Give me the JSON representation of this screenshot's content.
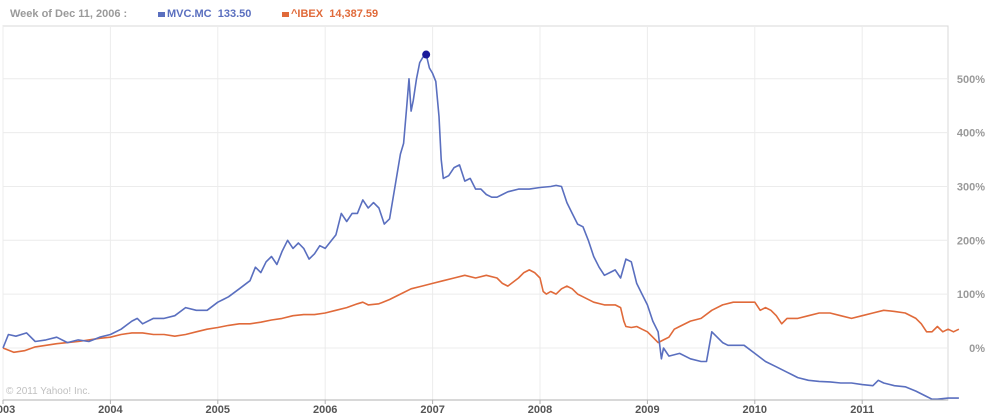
{
  "header": {
    "week_label": "Week of Dec 11, 2006 :",
    "series": [
      {
        "name": "MVC.MC",
        "value": "133.50",
        "color": "#5a6fbf"
      },
      {
        "name": "^IBEX",
        "value": "14,387.59",
        "color": "#e06a3a"
      }
    ]
  },
  "copyright": "© 2011 Yahoo! Inc.",
  "chart_data": {
    "type": "line",
    "title": "",
    "xlabel": "",
    "ylabel": "",
    "x_tick_labels": [
      "2003",
      "2004",
      "2005",
      "2006",
      "2007",
      "2008",
      "2009",
      "2010",
      "2011"
    ],
    "y_tick_labels": [
      "0%",
      "100%",
      "200%",
      "300%",
      "400%",
      "500%"
    ],
    "y_ticks": [
      0,
      100,
      200,
      300,
      400,
      500
    ],
    "xlim": [
      2003.0,
      2011.9
    ],
    "ylim": [
      -100,
      600
    ],
    "grid": true,
    "highlight": {
      "series": "MVC.MC",
      "x": 2006.94,
      "y": 545
    },
    "series": [
      {
        "name": "MVC.MC",
        "color": "#5a6fbf",
        "points": [
          [
            2003.0,
            0
          ],
          [
            2003.05,
            25
          ],
          [
            2003.12,
            22
          ],
          [
            2003.22,
            28
          ],
          [
            2003.3,
            12
          ],
          [
            2003.4,
            15
          ],
          [
            2003.5,
            20
          ],
          [
            2003.6,
            10
          ],
          [
            2003.7,
            15
          ],
          [
            2003.8,
            12
          ],
          [
            2003.9,
            20
          ],
          [
            2004.0,
            25
          ],
          [
            2004.1,
            35
          ],
          [
            2004.2,
            50
          ],
          [
            2004.25,
            55
          ],
          [
            2004.3,
            45
          ],
          [
            2004.4,
            55
          ],
          [
            2004.5,
            55
          ],
          [
            2004.6,
            60
          ],
          [
            2004.7,
            75
          ],
          [
            2004.8,
            70
          ],
          [
            2004.9,
            70
          ],
          [
            2005.0,
            85
          ],
          [
            2005.05,
            90
          ],
          [
            2005.1,
            95
          ],
          [
            2005.2,
            110
          ],
          [
            2005.3,
            125
          ],
          [
            2005.35,
            150
          ],
          [
            2005.4,
            140
          ],
          [
            2005.45,
            160
          ],
          [
            2005.5,
            170
          ],
          [
            2005.55,
            155
          ],
          [
            2005.6,
            180
          ],
          [
            2005.65,
            200
          ],
          [
            2005.7,
            185
          ],
          [
            2005.75,
            195
          ],
          [
            2005.8,
            185
          ],
          [
            2005.85,
            165
          ],
          [
            2005.9,
            175
          ],
          [
            2005.95,
            190
          ],
          [
            2006.0,
            185
          ],
          [
            2006.1,
            210
          ],
          [
            2006.15,
            250
          ],
          [
            2006.2,
            235
          ],
          [
            2006.25,
            250
          ],
          [
            2006.3,
            250
          ],
          [
            2006.35,
            275
          ],
          [
            2006.4,
            260
          ],
          [
            2006.45,
            270
          ],
          [
            2006.5,
            260
          ],
          [
            2006.55,
            230
          ],
          [
            2006.6,
            240
          ],
          [
            2006.65,
            300
          ],
          [
            2006.7,
            360
          ],
          [
            2006.73,
            380
          ],
          [
            2006.76,
            450
          ],
          [
            2006.78,
            500
          ],
          [
            2006.8,
            440
          ],
          [
            2006.82,
            460
          ],
          [
            2006.85,
            500
          ],
          [
            2006.88,
            530
          ],
          [
            2006.91,
            540
          ],
          [
            2006.94,
            545
          ],
          [
            2006.97,
            520
          ],
          [
            2007.0,
            510
          ],
          [
            2007.03,
            495
          ],
          [
            2007.06,
            430
          ],
          [
            2007.08,
            350
          ],
          [
            2007.1,
            315
          ],
          [
            2007.15,
            320
          ],
          [
            2007.2,
            335
          ],
          [
            2007.25,
            340
          ],
          [
            2007.3,
            310
          ],
          [
            2007.35,
            315
          ],
          [
            2007.4,
            295
          ],
          [
            2007.45,
            295
          ],
          [
            2007.5,
            285
          ],
          [
            2007.55,
            280
          ],
          [
            2007.6,
            280
          ],
          [
            2007.65,
            285
          ],
          [
            2007.7,
            290
          ],
          [
            2007.8,
            295
          ],
          [
            2007.9,
            295
          ],
          [
            2008.0,
            298
          ],
          [
            2008.1,
            300
          ],
          [
            2008.15,
            302
          ],
          [
            2008.2,
            300
          ],
          [
            2008.25,
            270
          ],
          [
            2008.3,
            250
          ],
          [
            2008.35,
            230
          ],
          [
            2008.4,
            225
          ],
          [
            2008.45,
            200
          ],
          [
            2008.5,
            170
          ],
          [
            2008.55,
            150
          ],
          [
            2008.6,
            135
          ],
          [
            2008.65,
            140
          ],
          [
            2008.7,
            145
          ],
          [
            2008.75,
            130
          ],
          [
            2008.8,
            165
          ],
          [
            2008.85,
            160
          ],
          [
            2008.9,
            120
          ],
          [
            2008.95,
            100
          ],
          [
            2009.0,
            80
          ],
          [
            2009.05,
            50
          ],
          [
            2009.1,
            30
          ],
          [
            2009.13,
            -20
          ],
          [
            2009.15,
            0
          ],
          [
            2009.2,
            -15
          ],
          [
            2009.3,
            -10
          ],
          [
            2009.4,
            -20
          ],
          [
            2009.5,
            -25
          ],
          [
            2009.55,
            -25
          ],
          [
            2009.6,
            30
          ],
          [
            2009.65,
            20
          ],
          [
            2009.7,
            10
          ],
          [
            2009.75,
            5
          ],
          [
            2009.8,
            5
          ],
          [
            2009.9,
            5
          ],
          [
            2010.0,
            -10
          ],
          [
            2010.1,
            -25
          ],
          [
            2010.2,
            -35
          ],
          [
            2010.3,
            -45
          ],
          [
            2010.35,
            -50
          ],
          [
            2010.4,
            -55
          ],
          [
            2010.5,
            -60
          ],
          [
            2010.6,
            -62
          ],
          [
            2010.7,
            -63
          ],
          [
            2010.8,
            -65
          ],
          [
            2010.9,
            -65
          ],
          [
            2011.0,
            -68
          ],
          [
            2011.1,
            -70
          ],
          [
            2011.15,
            -60
          ],
          [
            2011.2,
            -65
          ],
          [
            2011.3,
            -70
          ],
          [
            2011.4,
            -72
          ],
          [
            2011.5,
            -80
          ],
          [
            2011.6,
            -90
          ],
          [
            2011.65,
            -95
          ],
          [
            2011.7,
            -95
          ],
          [
            2011.8,
            -93
          ],
          [
            2011.9,
            -93
          ]
        ]
      },
      {
        "name": "^IBEX",
        "color": "#e06a3a",
        "points": [
          [
            2003.0,
            0
          ],
          [
            2003.1,
            -8
          ],
          [
            2003.2,
            -5
          ],
          [
            2003.3,
            2
          ],
          [
            2003.4,
            5
          ],
          [
            2003.5,
            8
          ],
          [
            2003.6,
            10
          ],
          [
            2003.7,
            12
          ],
          [
            2003.8,
            15
          ],
          [
            2003.9,
            18
          ],
          [
            2004.0,
            20
          ],
          [
            2004.1,
            25
          ],
          [
            2004.2,
            28
          ],
          [
            2004.3,
            28
          ],
          [
            2004.4,
            25
          ],
          [
            2004.5,
            25
          ],
          [
            2004.6,
            22
          ],
          [
            2004.7,
            25
          ],
          [
            2004.8,
            30
          ],
          [
            2004.9,
            35
          ],
          [
            2005.0,
            38
          ],
          [
            2005.1,
            42
          ],
          [
            2005.2,
            45
          ],
          [
            2005.3,
            45
          ],
          [
            2005.4,
            48
          ],
          [
            2005.5,
            52
          ],
          [
            2005.6,
            55
          ],
          [
            2005.7,
            60
          ],
          [
            2005.8,
            62
          ],
          [
            2005.9,
            62
          ],
          [
            2006.0,
            65
          ],
          [
            2006.1,
            70
          ],
          [
            2006.2,
            75
          ],
          [
            2006.3,
            82
          ],
          [
            2006.35,
            85
          ],
          [
            2006.4,
            80
          ],
          [
            2006.5,
            82
          ],
          [
            2006.6,
            90
          ],
          [
            2006.7,
            100
          ],
          [
            2006.8,
            110
          ],
          [
            2006.9,
            115
          ],
          [
            2007.0,
            120
          ],
          [
            2007.1,
            125
          ],
          [
            2007.2,
            130
          ],
          [
            2007.3,
            135
          ],
          [
            2007.4,
            130
          ],
          [
            2007.5,
            135
          ],
          [
            2007.6,
            130
          ],
          [
            2007.65,
            120
          ],
          [
            2007.7,
            115
          ],
          [
            2007.8,
            130
          ],
          [
            2007.85,
            140
          ],
          [
            2007.9,
            145
          ],
          [
            2007.95,
            140
          ],
          [
            2008.0,
            130
          ],
          [
            2008.03,
            105
          ],
          [
            2008.06,
            100
          ],
          [
            2008.1,
            105
          ],
          [
            2008.15,
            100
          ],
          [
            2008.2,
            110
          ],
          [
            2008.25,
            115
          ],
          [
            2008.3,
            110
          ],
          [
            2008.35,
            100
          ],
          [
            2008.4,
            95
          ],
          [
            2008.5,
            85
          ],
          [
            2008.6,
            80
          ],
          [
            2008.7,
            80
          ],
          [
            2008.75,
            75
          ],
          [
            2008.78,
            50
          ],
          [
            2008.8,
            40
          ],
          [
            2008.85,
            38
          ],
          [
            2008.9,
            40
          ],
          [
            2008.95,
            35
          ],
          [
            2009.0,
            30
          ],
          [
            2009.05,
            20
          ],
          [
            2009.1,
            10
          ],
          [
            2009.15,
            15
          ],
          [
            2009.2,
            20
          ],
          [
            2009.25,
            35
          ],
          [
            2009.3,
            40
          ],
          [
            2009.4,
            50
          ],
          [
            2009.5,
            55
          ],
          [
            2009.6,
            70
          ],
          [
            2009.7,
            80
          ],
          [
            2009.8,
            85
          ],
          [
            2009.9,
            85
          ],
          [
            2010.0,
            85
          ],
          [
            2010.05,
            70
          ],
          [
            2010.1,
            75
          ],
          [
            2010.15,
            70
          ],
          [
            2010.2,
            60
          ],
          [
            2010.25,
            45
          ],
          [
            2010.3,
            55
          ],
          [
            2010.4,
            55
          ],
          [
            2010.5,
            60
          ],
          [
            2010.6,
            65
          ],
          [
            2010.7,
            65
          ],
          [
            2010.8,
            60
          ],
          [
            2010.9,
            55
          ],
          [
            2011.0,
            60
          ],
          [
            2011.1,
            65
          ],
          [
            2011.2,
            70
          ],
          [
            2011.3,
            68
          ],
          [
            2011.4,
            65
          ],
          [
            2011.5,
            55
          ],
          [
            2011.55,
            45
          ],
          [
            2011.6,
            30
          ],
          [
            2011.65,
            30
          ],
          [
            2011.7,
            40
          ],
          [
            2011.75,
            30
          ],
          [
            2011.8,
            35
          ],
          [
            2011.85,
            30
          ],
          [
            2011.9,
            35
          ]
        ]
      }
    ]
  }
}
